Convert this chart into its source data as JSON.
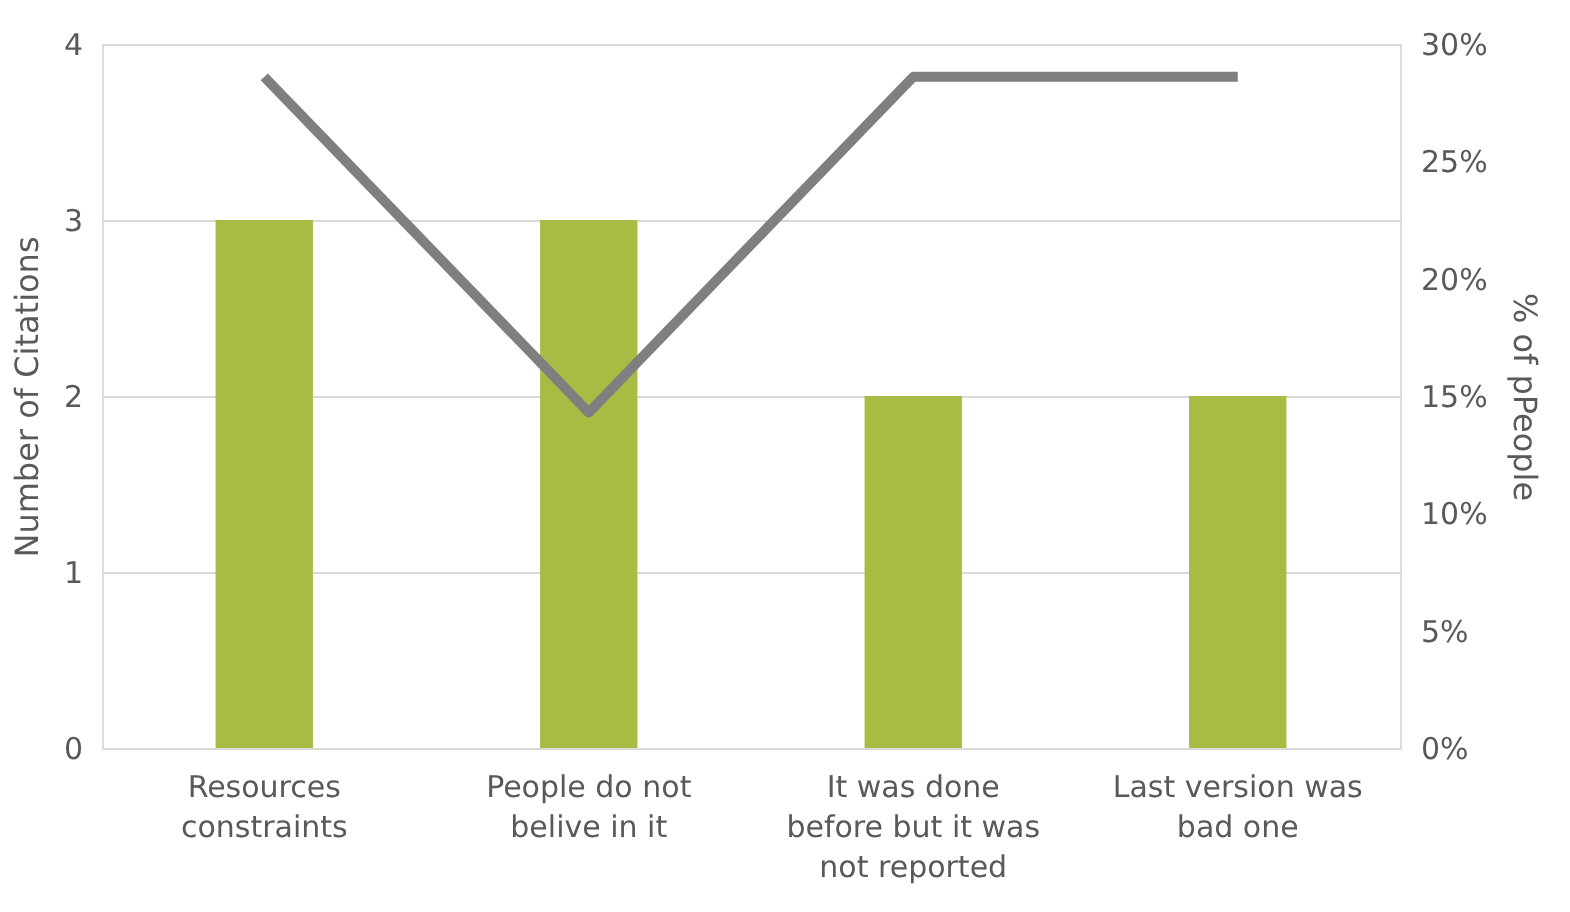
{
  "chart_data": {
    "type": "bar",
    "categories": [
      "Resources constraints",
      "People do not belive in it",
      "It was done before but it was not reported",
      "Last version was bad one"
    ],
    "ylabel": "Number of Citations",
    "y2label": "% of pPeople",
    "ylim": [
      0,
      4
    ],
    "yticks": [
      0,
      1,
      2,
      3,
      4
    ],
    "y2lim": [
      0,
      30
    ],
    "y2ticks": [
      {
        "value": 0,
        "label": "0%"
      },
      {
        "value": 5,
        "label": "5%"
      },
      {
        "value": 10,
        "label": "10%"
      },
      {
        "value": 15,
        "label": "15%"
      },
      {
        "value": 20,
        "label": "20%"
      },
      {
        "value": 25,
        "label": "25%"
      },
      {
        "value": 30,
        "label": "30%"
      }
    ],
    "grid": "y",
    "marker": "none",
    "line_style": "solid",
    "series": [
      {
        "color": "#a9bb43",
        "values": [
          3,
          3,
          2,
          2
        ]
      },
      {
        "type": "line",
        "axis": "y2",
        "color": "#7f7f7f",
        "values": [
          28.6,
          14.3,
          28.6,
          28.6
        ]
      }
    ]
  }
}
